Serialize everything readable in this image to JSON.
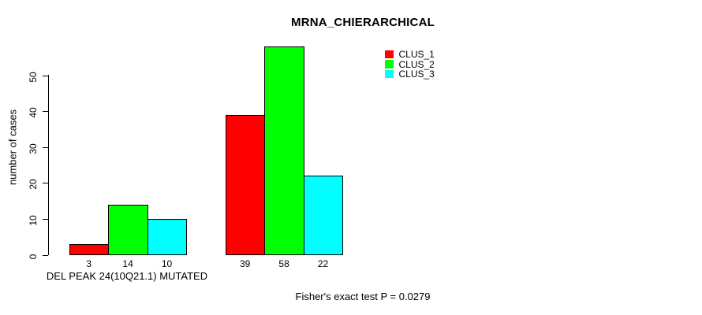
{
  "chart_data": {
    "type": "bar",
    "title": "MRNA_CHIERARCHICAL",
    "ylabel": "number of cases",
    "xlabel": "DEL PEAK 24(10Q21.1) MUTATED",
    "annotation": "Fisher's exact test P = 0.0279",
    "yticks": [
      0,
      10,
      20,
      30,
      40,
      50
    ],
    "ylim": [
      0,
      58
    ],
    "grid": false,
    "legend_position": "top-right",
    "groups": [
      {
        "label": "DEL PEAK 24(10Q21.1) MUTATED",
        "values": [
          3,
          14,
          10
        ]
      },
      {
        "label": "",
        "values": [
          39,
          58,
          22
        ]
      }
    ],
    "series": [
      {
        "name": "CLUS_1",
        "color": "#ff0000",
        "values": [
          3,
          39
        ]
      },
      {
        "name": "CLUS_2",
        "color": "#00ff00",
        "values": [
          14,
          58
        ]
      },
      {
        "name": "CLUS_3",
        "color": "#00ffff",
        "values": [
          10,
          22
        ]
      }
    ]
  },
  "colors": {
    "background": "#ffffff",
    "axis": "#000000",
    "text": "#000000",
    "bar_border": "#000000"
  }
}
